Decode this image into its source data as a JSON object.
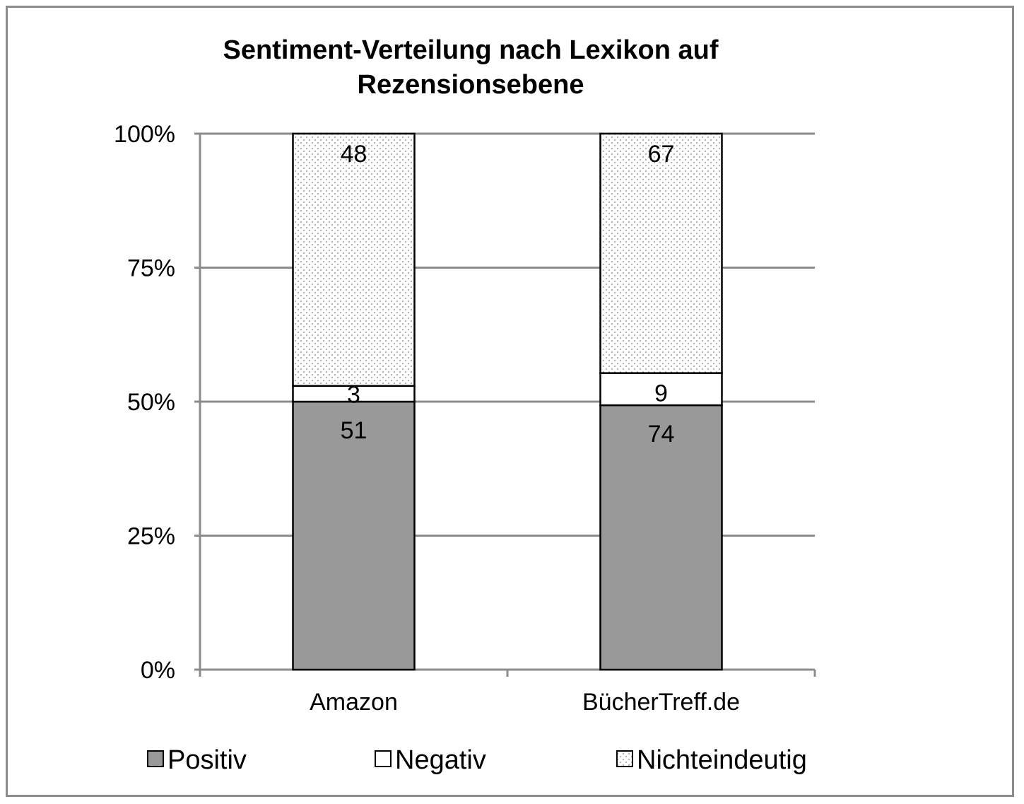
{
  "chart_data": {
    "type": "bar",
    "stacked": true,
    "normalized": true,
    "title_lines": [
      "Sentiment-Verteilung nach Lexikon auf",
      "Rezensionsebene"
    ],
    "categories": [
      "Amazon",
      "BücherTreff.de"
    ],
    "series": [
      {
        "name": "Positiv",
        "values": [
          51,
          74
        ],
        "color": "#999999",
        "pattern": "solid"
      },
      {
        "name": "Negativ",
        "values": [
          3,
          9
        ],
        "color": "#ffffff",
        "pattern": "solid"
      },
      {
        "name": "Nichteindeutig",
        "values": [
          48,
          67
        ],
        "color": "#ffffff",
        "pattern": "dots"
      }
    ],
    "y_ticks": [
      "0%",
      "25%",
      "50%",
      "75%",
      "100%"
    ],
    "ylim": [
      0,
      100
    ],
    "xlabel": "",
    "ylabel": "",
    "grid": true,
    "legend_position": "bottom"
  }
}
